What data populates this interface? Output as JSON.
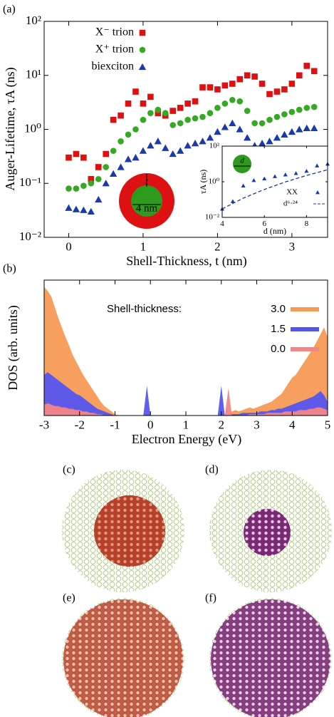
{
  "chart_data": [
    {
      "type": "scatter",
      "panel_label": "(a)",
      "xlabel": "Shell-Thickness, t (nm)",
      "ylabel": "Auger-Lifetime, τA (ns)",
      "log_y": true,
      "legend": "upper left",
      "x": [
        0,
        0.1,
        0.2,
        0.3,
        0.4,
        0.5,
        0.6,
        0.7,
        0.8,
        0.9,
        1.0,
        1.1,
        1.2,
        1.3,
        1.4,
        1.5,
        1.6,
        1.7,
        1.8,
        1.9,
        2.0,
        2.1,
        2.2,
        2.3,
        2.4,
        2.5,
        2.6,
        2.7,
        2.8,
        2.9,
        3.0,
        3.1,
        3.2,
        3.3
      ],
      "series": [
        {
          "name": "X⁻ trion",
          "color": "#dd1111",
          "marker": "square",
          "values": [
            0.3,
            0.35,
            0.3,
            0.12,
            0.2,
            0.35,
            1.5,
            1.8,
            3,
            5,
            3,
            4,
            2,
            1.8,
            2.2,
            2.5,
            3,
            3.3,
            6,
            6,
            5.5,
            6.5,
            7,
            8.5,
            10,
            9.5,
            7,
            4.5,
            5,
            5.5,
            7,
            10,
            15,
            12
          ]
        },
        {
          "name": "X⁺ trion",
          "color": "#33aa22",
          "marker": "circle",
          "values": [
            0.08,
            0.08,
            0.09,
            0.1,
            0.12,
            0.2,
            0.4,
            0.6,
            0.8,
            1.0,
            1.5,
            2.0,
            2.3,
            2.0,
            1.2,
            1.3,
            1.5,
            1.6,
            1.7,
            2.0,
            2.5,
            3.0,
            3.5,
            3.3,
            2.2,
            1.3,
            1.3,
            1.5,
            1.7,
            1.9,
            2.1,
            2.3,
            2.5,
            2.6
          ]
        },
        {
          "name": "biexciton",
          "color": "#1a3aaa",
          "marker": "triangle",
          "values": [
            0.035,
            0.033,
            0.032,
            0.03,
            0.05,
            0.1,
            0.15,
            0.2,
            0.28,
            0.3,
            0.4,
            0.5,
            0.6,
            0.45,
            0.35,
            0.4,
            0.5,
            0.55,
            0.6,
            0.7,
            0.9,
            1.1,
            1.3,
            1.0,
            0.7,
            0.5,
            0.55,
            0.6,
            0.7,
            0.8,
            0.9,
            1.0,
            1.05,
            1.05
          ]
        }
      ],
      "annotations": [
        "4 nm",
        "t"
      ],
      "xlim": [
        -0.33,
        3.48
      ],
      "xticks": [
        0,
        1,
        2,
        3
      ],
      "ylim": [
        0.01,
        100
      ],
      "yticks": [
        {
          "value": 0.01,
          "label": "10⁻²"
        },
        {
          "value": 0.1,
          "label": "10⁻¹"
        },
        {
          "value": 1,
          "label": "10⁰"
        },
        {
          "value": 10,
          "label": "10¹"
        },
        {
          "value": 100,
          "label": "10²"
        }
      ]
    },
    {
      "type": "scatter",
      "xlabel": "d (nm)",
      "ylabel": "τA (ns)",
      "log_y": true,
      "legend": "lower right",
      "series": [
        {
          "name": "XX",
          "color": "#1a3aaa",
          "marker": "triangle",
          "x": [
            4,
            4.5,
            5,
            5.5,
            6,
            6.5,
            7,
            7.5,
            8,
            8.5,
            9
          ],
          "values": [
            0.03,
            0.08,
            0.6,
            1.2,
            1.5,
            2,
            2.5,
            3,
            4,
            8,
            10
          ]
        },
        {
          "name": "d⁶·²⁴",
          "color": "#1a3aaa",
          "marker": "dashed",
          "x": [
            4,
            5,
            6,
            7,
            8,
            9
          ],
          "values": [
            0.03,
            0.12,
            0.37,
            0.98,
            2.25,
            4.7
          ]
        }
      ],
      "annotations": [
        "d"
      ],
      "xlim": [
        4,
        9
      ],
      "xticks": [
        4,
        6,
        8
      ],
      "ylim": [
        0.01,
        100
      ],
      "yticks": [
        {
          "value": 0.01,
          "label": "10⁻²"
        },
        {
          "value": 1,
          "label": "10⁰"
        },
        {
          "value": 100,
          "label": "10²"
        }
      ]
    },
    {
      "type": "area",
      "panel_label": "(b)",
      "xlabel": "Electron Energy (eV)",
      "ylabel": "DOS (arb. units)",
      "legend_title": "Shell-thickness:",
      "legend": "upper center",
      "x": [
        -3,
        -2.9,
        -2.8,
        -2.7,
        -2.6,
        -2.5,
        -2.4,
        -2.3,
        -2.2,
        -2.1,
        -2,
        -1.9,
        -1.8,
        -1.7,
        -1.6,
        -1.5,
        -1.4,
        -1.3,
        -1.2,
        -1.1,
        -1,
        -0.9,
        -0.8,
        -0.7,
        -0.6,
        -0.5,
        -0.4,
        -0.3,
        -0.2,
        -0.1,
        0,
        0.1,
        0.2,
        0.3,
        0.4,
        0.5,
        0.6,
        0.7,
        0.8,
        0.9,
        1,
        1.1,
        1.2,
        1.3,
        1.4,
        1.5,
        1.6,
        1.7,
        1.8,
        1.9,
        2,
        2.1,
        2.2,
        2.3,
        2.4,
        2.5,
        2.6,
        2.7,
        2.8,
        2.9,
        3,
        3.1,
        3.2,
        3.3,
        3.4,
        3.5,
        3.6,
        3.7,
        3.8,
        3.9,
        4,
        4.1,
        4.2,
        4.3,
        4.4,
        4.5,
        4.6,
        4.7,
        4.8,
        4.9,
        5
      ],
      "series": [
        {
          "name": "3.0",
          "color": "#f59a55",
          "values": [
            95,
            92,
            88,
            80,
            72,
            65,
            58,
            52,
            45,
            40,
            35,
            30,
            26,
            22,
            18,
            14,
            10,
            7,
            5,
            3,
            1,
            0,
            0,
            0,
            0,
            0,
            0,
            0,
            0,
            0,
            0,
            0,
            0,
            0,
            0,
            0,
            0,
            0,
            0,
            0,
            0,
            0,
            0,
            0,
            0,
            0,
            0,
            0,
            0,
            0,
            0,
            0,
            0,
            3,
            4,
            3,
            4,
            5,
            6,
            5,
            6,
            7,
            8,
            9,
            10,
            12,
            14,
            16,
            20,
            24,
            28,
            30,
            34,
            38,
            42,
            46,
            50,
            55,
            60,
            65,
            58
          ]
        },
        {
          "name": "1.5",
          "color": "#5555ee",
          "values": [
            30,
            32,
            30,
            28,
            26,
            24,
            22,
            20,
            18,
            16,
            15,
            13,
            11,
            9,
            7,
            5,
            4,
            3,
            2,
            1,
            0,
            0,
            0,
            0,
            0,
            0,
            0,
            0,
            0,
            22,
            0,
            0,
            0,
            0,
            0,
            0,
            0,
            0,
            0,
            0,
            0,
            0,
            0,
            0,
            0,
            0,
            0,
            0,
            0,
            0,
            22,
            0,
            0,
            1,
            1,
            1,
            2,
            2,
            2,
            2,
            2,
            3,
            3,
            3,
            4,
            4,
            5,
            5,
            6,
            7,
            8,
            9,
            10,
            11,
            12,
            13,
            14,
            16,
            18,
            15,
            10
          ]
        },
        {
          "name": "0.0",
          "color": "#f38585",
          "values": [
            8,
            9,
            8,
            7,
            7,
            6,
            6,
            5,
            5,
            4,
            4,
            3,
            3,
            2,
            2,
            1,
            1,
            0,
            0,
            0,
            0,
            0,
            0,
            0,
            0,
            0,
            0,
            0,
            0,
            0,
            0,
            0,
            0,
            0,
            0,
            0,
            0,
            0,
            0,
            0,
            0,
            0,
            0,
            0,
            0,
            0,
            0,
            0,
            0,
            0,
            0,
            0,
            20,
            0,
            0,
            0,
            0,
            0,
            1,
            1,
            1,
            1,
            1,
            2,
            2,
            2,
            2,
            2,
            3,
            3,
            3,
            3,
            4,
            4,
            4,
            5,
            5,
            6,
            6,
            5,
            4
          ]
        }
      ],
      "xlim": [
        -3,
        5
      ],
      "xticks": [
        -3,
        -2,
        -1,
        0,
        1,
        2,
        3,
        4,
        5
      ],
      "ylim": [
        0,
        100
      ]
    }
  ],
  "panels": [
    "(c)",
    "(d)",
    "(e)",
    "(f)"
  ]
}
